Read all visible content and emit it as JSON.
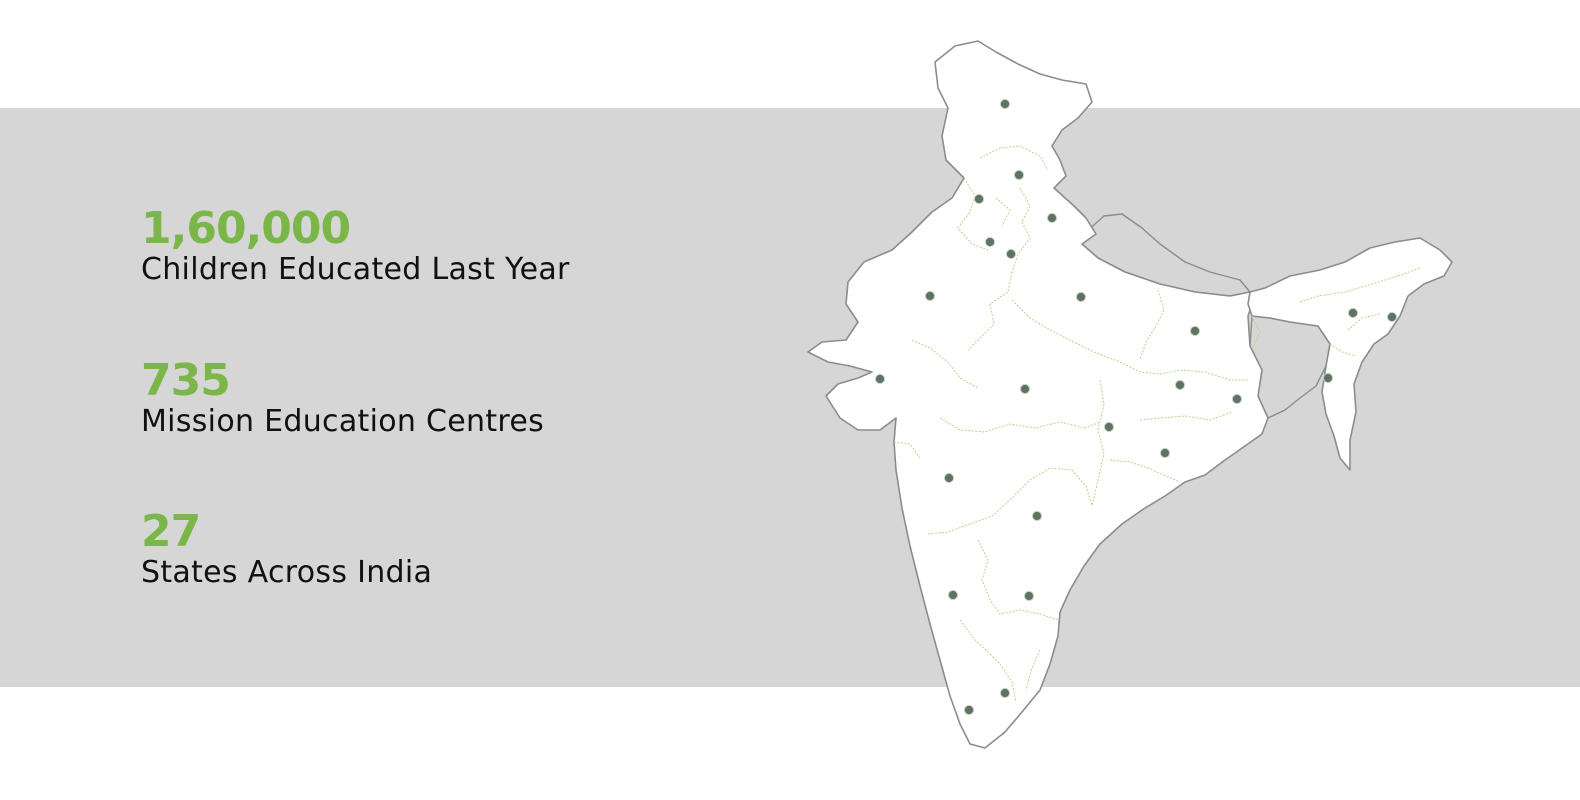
{
  "colors": {
    "accent": "#7ab648",
    "band": "#d6d6d6",
    "land": "#ffffff",
    "border": "#8c8c8c",
    "state_border": "#b5d68a",
    "marker": "#5e7461"
  },
  "stats": [
    {
      "value": "1,60,000",
      "label": "Children Educated Last Year"
    },
    {
      "value": "735",
      "label": "Mission Education Centres"
    },
    {
      "value": "27",
      "label": "States Across India"
    }
  ],
  "map": {
    "region": "India",
    "marker_icon": "location-dot-icon",
    "marker_count": 27
  }
}
